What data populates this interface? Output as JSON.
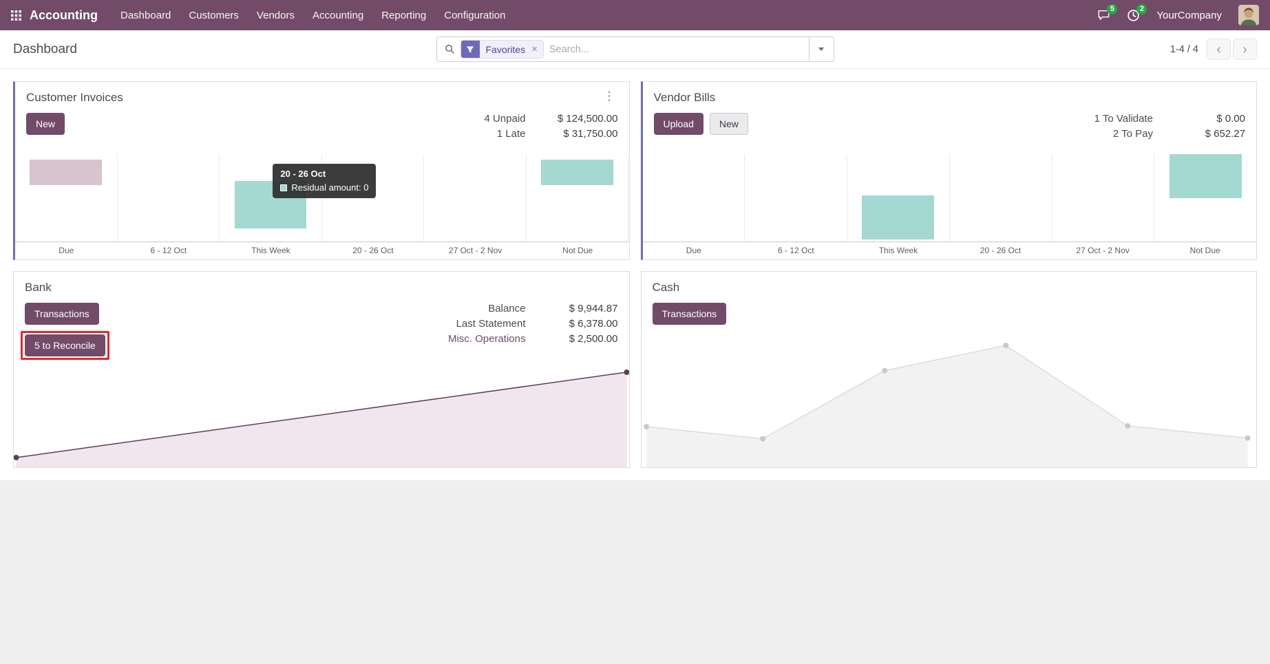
{
  "colors": {
    "navbar-bg": "#714B67",
    "primary": "#714B67",
    "accent-indigo": "#6f6ab8",
    "card-accent": "#7569b3",
    "teal-bar": "#a3d9d2",
    "pink-bar": "#d6c5cf",
    "badge-green": "#28a745",
    "annotation-red": "#e8262b"
  },
  "navbar": {
    "app_name": "Accounting",
    "menus": [
      "Dashboard",
      "Customers",
      "Vendors",
      "Accounting",
      "Reporting",
      "Configuration"
    ],
    "messages_badge": "5",
    "activities_badge": "2",
    "company": "YourCompany"
  },
  "control_panel": {
    "breadcrumb": "Dashboard",
    "search": {
      "facet_label": "Favorites",
      "placeholder": "Search..."
    },
    "pager": {
      "value": "1-4 / 4"
    }
  },
  "charts": {
    "bar_categories": [
      "Due",
      "6 - 12 Oct",
      "This Week",
      "20 - 26 Oct",
      "27 Oct - 2 Nov",
      "Not Due"
    ]
  },
  "cards": {
    "customer_invoices": {
      "title": "Customer Invoices",
      "new_button": "New",
      "stats": [
        {
          "label": "4 Unpaid",
          "value": "$ 124,500.00"
        },
        {
          "label": "1 Late",
          "value": "$ 31,750.00"
        }
      ],
      "tooltip": {
        "title": "20 - 26 Oct",
        "text": "Residual amount: 0"
      },
      "chart": {
        "type": "bar",
        "bars": [
          {
            "category": "Due",
            "col": 0,
            "color": "#d6c5cf",
            "top": 0.065,
            "height": 0.29
          },
          {
            "category": "This Week",
            "col": 2,
            "color": "#a3d9d2",
            "top": 0.31,
            "height": 0.54
          },
          {
            "category": "Not Due",
            "col": 5,
            "color": "#a3d9d2",
            "top": 0.065,
            "height": 0.29
          }
        ]
      }
    },
    "vendor_bills": {
      "title": "Vendor Bills",
      "upload_button": "Upload",
      "new_button": "New",
      "stats": [
        {
          "label": "1 To Validate",
          "value": "$ 0.00"
        },
        {
          "label": "2 To Pay",
          "value": "$ 652.27"
        }
      ],
      "chart": {
        "type": "bar",
        "bars": [
          {
            "category": "This Week",
            "col": 2,
            "color": "#a3d9d2",
            "top": 0.47,
            "height": 0.51
          },
          {
            "category": "Not Due",
            "col": 5,
            "color": "#a3d9d2",
            "top": 0.0,
            "height": 0.5
          }
        ]
      }
    },
    "bank": {
      "title": "Bank",
      "transactions_button": "Transactions",
      "reconcile_button": "5 to Reconcile",
      "stats": [
        {
          "label": "Balance",
          "value": "$ 9,944.87"
        },
        {
          "label": "Last Statement",
          "value": "$ 6,378.00"
        },
        {
          "label": "Misc. Operations",
          "value": "$ 2,500.00"
        }
      ],
      "chart": {
        "type": "area",
        "points": [
          [
            0.004,
            0.91
          ],
          [
            0.996,
            0.115
          ]
        ],
        "line_color": "#5c3f54",
        "fill_color": "#f1e6ee",
        "dot_color": "#5c3f54"
      }
    },
    "cash": {
      "title": "Cash",
      "transactions_button": "Transactions",
      "chart": {
        "type": "area",
        "points": [
          [
            0.008,
            0.68
          ],
          [
            0.197,
            0.775
          ],
          [
            0.395,
            0.237
          ],
          [
            0.592,
            0.038
          ],
          [
            0.79,
            0.673
          ],
          [
            0.985,
            0.77
          ]
        ],
        "line_color": "#dcdcdf",
        "fill_color": "#f2f2f3",
        "dot_color": "#c9c9cd"
      }
    }
  }
}
